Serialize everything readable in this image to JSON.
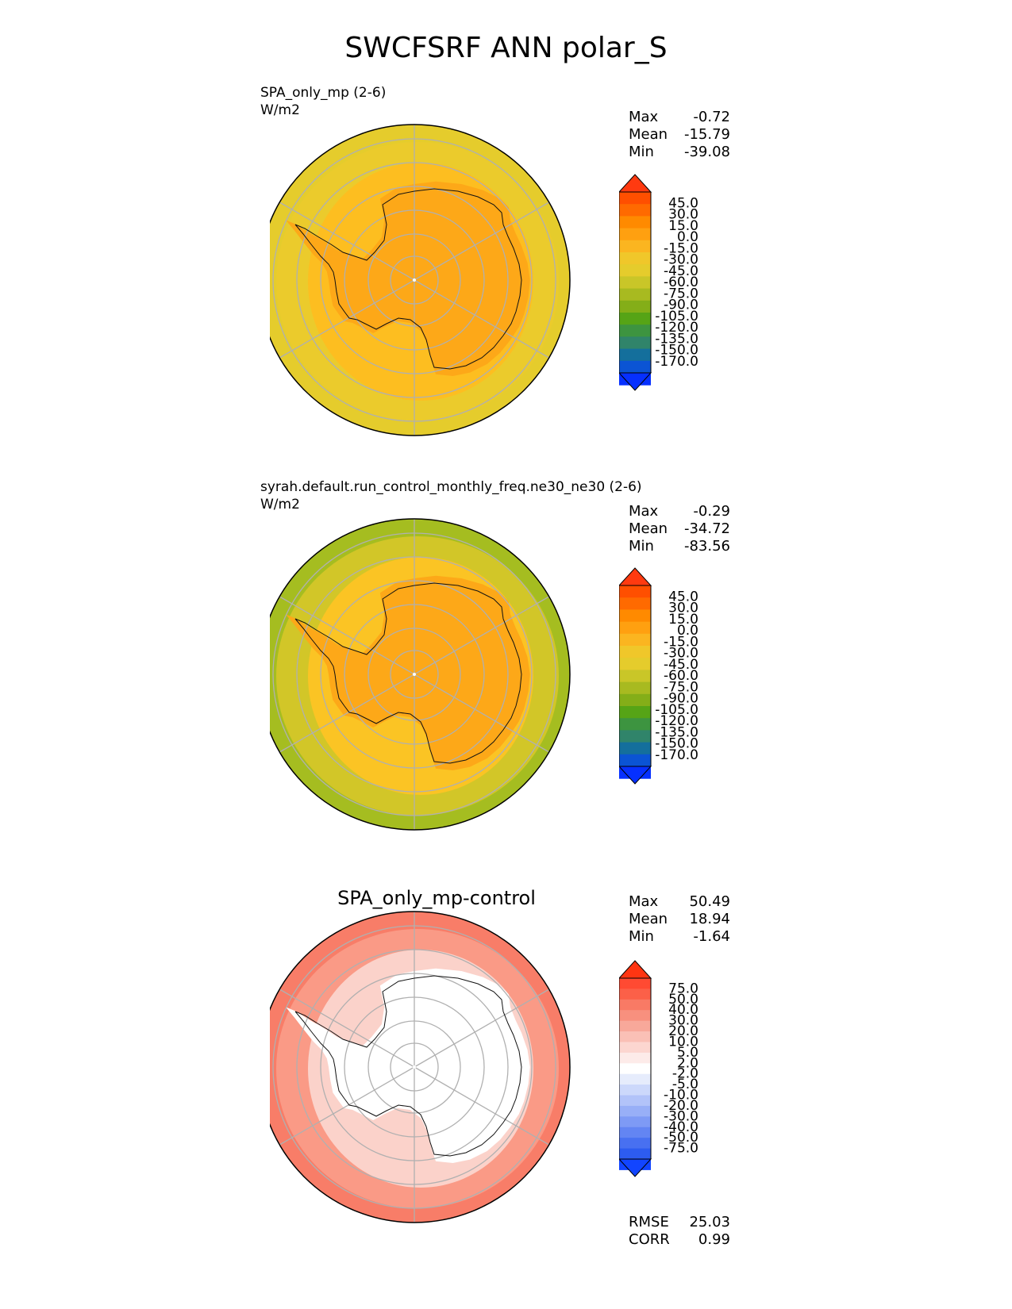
{
  "figure": {
    "title": "SWCFSRF ANN polar_S"
  },
  "chart_data": [
    {
      "type": "heatmap",
      "projection": "south-polar-stereographic",
      "title": "SPA_only_mp (2-6)",
      "units": "W/m2",
      "stats": {
        "max_label": "Max",
        "max": "-0.72",
        "mean_label": "Mean",
        "mean": "-15.79",
        "min_label": "Min",
        "min": "-39.08"
      },
      "colorbar_levels": [
        "45.0",
        "30.0",
        "15.0",
        "0.0",
        "-15.0",
        "-30.0",
        "-45.0",
        "-60.0",
        "-75.0",
        "-90.0",
        "-105.0",
        "-120.0",
        "-135.0",
        "-150.0",
        "-170.0"
      ],
      "colorbar_colors": [
        "#ff3a10",
        "#ff4f00",
        "#ff6a00",
        "#ff8a00",
        "#ffa010",
        "#fbb520",
        "#f0c72a",
        "#e5cc2c",
        "#c9c628",
        "#a8ba20",
        "#84ae18",
        "#56a416",
        "#3d9440",
        "#30846a",
        "#146f9c",
        "#0b54d4",
        "#0630ff"
      ],
      "regions": {
        "polar": "#fda818",
        "mid": "#fdbe20",
        "outer": "#ebcb2c",
        "rim": "#e5cc2c"
      }
    },
    {
      "type": "heatmap",
      "projection": "south-polar-stereographic",
      "title": "syrah.default.run_control_monthly_freq.ne30_ne30 (2-6)",
      "units": "W/m2",
      "stats": {
        "max_label": "Max",
        "max": "-0.29",
        "mean_label": "Mean",
        "mean": "-34.72",
        "min_label": "Min",
        "min": "-83.56"
      },
      "colorbar_levels": [
        "45.0",
        "30.0",
        "15.0",
        "0.0",
        "-15.0",
        "-30.0",
        "-45.0",
        "-60.0",
        "-75.0",
        "-90.0",
        "-105.0",
        "-120.0",
        "-135.0",
        "-150.0",
        "-170.0"
      ],
      "colorbar_colors": [
        "#ff3a10",
        "#ff4f00",
        "#ff6a00",
        "#ff8a00",
        "#ffa010",
        "#fbb520",
        "#f0c72a",
        "#e5cc2c",
        "#c9c628",
        "#a8ba20",
        "#84ae18",
        "#56a416",
        "#3d9440",
        "#30846a",
        "#146f9c",
        "#0b54d4",
        "#0630ff"
      ],
      "regions": {
        "polar": "#fda818",
        "mid": "#fbc424",
        "outer": "#d2c628",
        "rim": "#a5bd20"
      }
    },
    {
      "type": "heatmap",
      "projection": "south-polar-stereographic",
      "title": "SPA_only_mp-control",
      "units": "",
      "stats": {
        "max_label": "Max",
        "max": "50.49",
        "mean_label": "Mean",
        "mean": "18.94",
        "min_label": "Min",
        "min": "-1.64"
      },
      "colorbar_levels": [
        "75.0",
        "50.0",
        "40.0",
        "30.0",
        "20.0",
        "10.0",
        "5.0",
        "2.0",
        "-2.0",
        "-5.0",
        "-10.0",
        "-20.0",
        "-30.0",
        "-40.0",
        "-50.0",
        "-75.0"
      ],
      "colorbar_colors": [
        "#ff3512",
        "#ff4a32",
        "#fc6048",
        "#f97a65",
        "#f8907e",
        "#f8a89a",
        "#fac0b6",
        "#fcd6d0",
        "#fdebe9",
        "#ffffff",
        "#e6ecfc",
        "#ccd8fb",
        "#b2c3f9",
        "#98aff7",
        "#7e9af5",
        "#6385f3",
        "#4870f1",
        "#2d5cf0",
        "#1245ff"
      ],
      "regions": {
        "polar": "#ffffff",
        "mid": "#fbd2ca",
        "outer": "#fa9a86",
        "rim": "#f87d68"
      },
      "rmse_label": "RMSE",
      "rmse": "25.03",
      "corr_label": "CORR",
      "corr": "0.99"
    }
  ]
}
